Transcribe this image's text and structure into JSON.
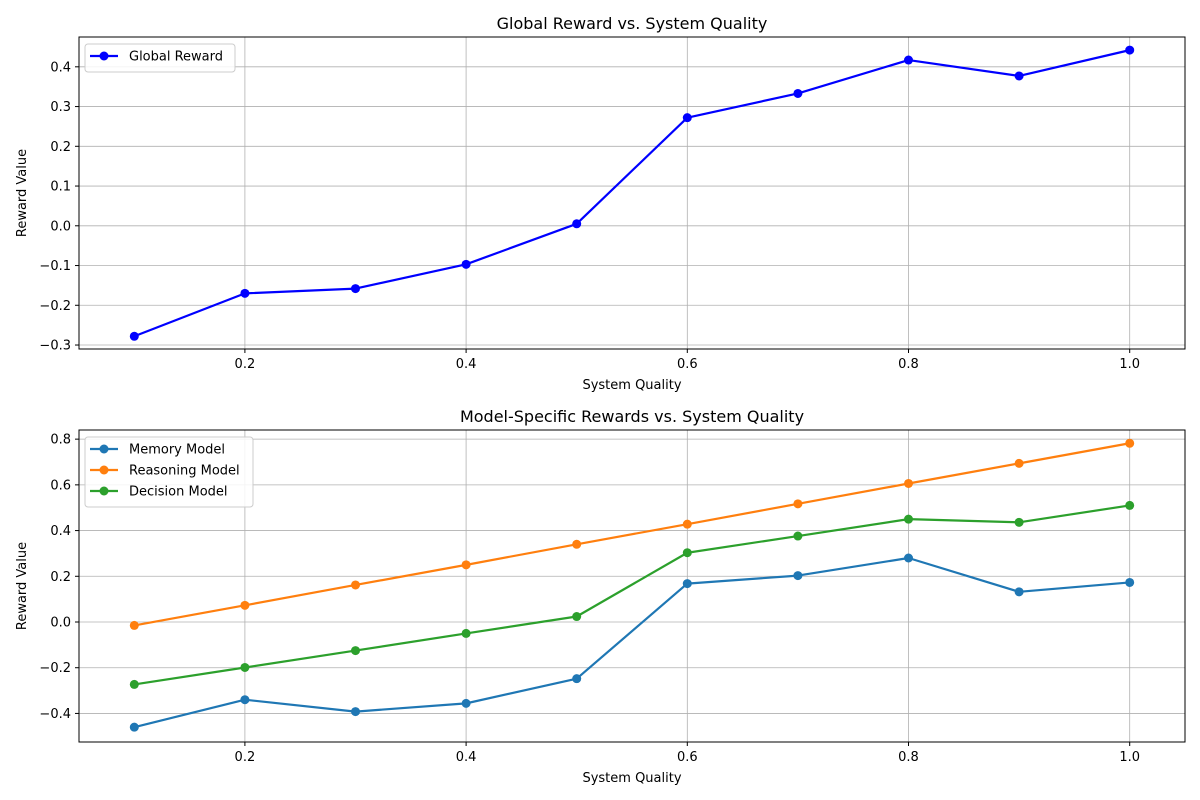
{
  "chart_data": [
    {
      "type": "line",
      "title": "Global Reward vs. System Quality",
      "xlabel": "System Quality",
      "ylabel": "Reward Value",
      "xlim": [
        0.05,
        1.05
      ],
      "ylim": [
        -0.31,
        0.475
      ],
      "xticks": [
        0.2,
        0.4,
        0.6,
        0.8,
        1.0
      ],
      "xtick_labels": [
        "0.2",
        "0.4",
        "0.6",
        "0.8",
        "1.0"
      ],
      "yticks": [
        -0.3,
        -0.2,
        -0.1,
        0.0,
        0.1,
        0.2,
        0.3,
        0.4
      ],
      "ytick_labels": [
        "−0.3",
        "−0.2",
        "−0.1",
        "0.0",
        "0.1",
        "0.2",
        "0.3",
        "0.4"
      ],
      "grid": true,
      "legend_position": "top-left",
      "x": [
        0.1,
        0.2,
        0.3,
        0.4,
        0.5,
        0.6,
        0.7,
        0.8,
        0.9,
        1.0
      ],
      "series": [
        {
          "name": "Global Reward",
          "color": "#0000ff",
          "values": [
            -0.278,
            -0.17,
            -0.158,
            -0.097,
            0.005,
            0.272,
            0.333,
            0.417,
            0.377,
            0.442
          ]
        }
      ]
    },
    {
      "type": "line",
      "title": "Model-Specific Rewards vs. System Quality",
      "xlabel": "System Quality",
      "ylabel": "Reward Value",
      "xlim": [
        0.05,
        1.05
      ],
      "ylim": [
        -0.525,
        0.84
      ],
      "xticks": [
        0.2,
        0.4,
        0.6,
        0.8,
        1.0
      ],
      "xtick_labels": [
        "0.2",
        "0.4",
        "0.6",
        "0.8",
        "1.0"
      ],
      "yticks": [
        -0.4,
        -0.2,
        0.0,
        0.2,
        0.4,
        0.6,
        0.8
      ],
      "ytick_labels": [
        "−0.4",
        "−0.2",
        "0.0",
        "0.2",
        "0.4",
        "0.6",
        "0.8"
      ],
      "grid": true,
      "legend_position": "top-left",
      "x": [
        0.1,
        0.2,
        0.3,
        0.4,
        0.5,
        0.6,
        0.7,
        0.8,
        0.9,
        1.0
      ],
      "series": [
        {
          "name": "Memory Model",
          "color": "#1f77b4",
          "values": [
            -0.46,
            -0.34,
            -0.392,
            -0.356,
            -0.248,
            0.168,
            0.203,
            0.28,
            0.132,
            0.173
          ]
        },
        {
          "name": "Reasoning Model",
          "color": "#ff7f0e",
          "values": [
            -0.015,
            0.073,
            0.162,
            0.25,
            0.34,
            0.428,
            0.517,
            0.606,
            0.694,
            0.782
          ]
        },
        {
          "name": "Decision Model",
          "color": "#2ca02c",
          "values": [
            -0.273,
            -0.199,
            -0.125,
            -0.05,
            0.024,
            0.303,
            0.376,
            0.45,
            0.436,
            0.51
          ]
        }
      ]
    }
  ]
}
